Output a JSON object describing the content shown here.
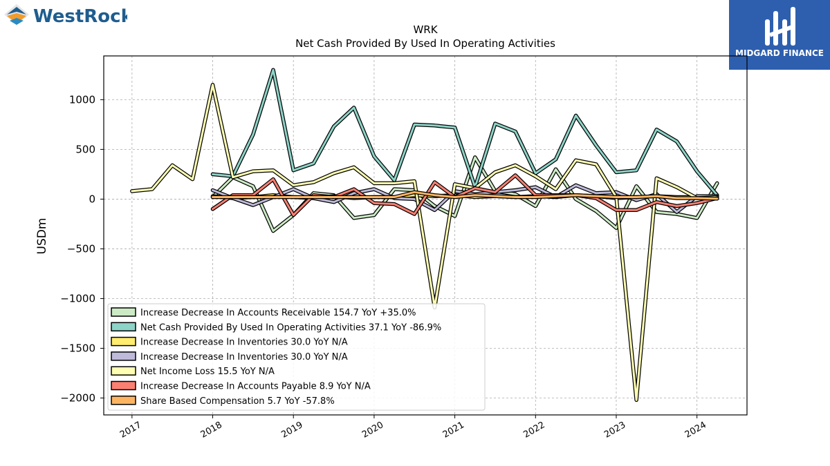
{
  "branding": {
    "left_logo_text": "WestRock",
    "right_logo_text": "MIDGARD FINANCE",
    "right_logo_bg": "#2e5fae"
  },
  "chart_data": {
    "type": "line",
    "title": "WRK",
    "subtitle": "Net Cash Provided By Used In Operating Activities",
    "xlabel": "",
    "ylabel": "USDm",
    "xlim": [
      2016.65,
      2024.62
    ],
    "ylim": [
      -2170,
      1440
    ],
    "x_ticks": [
      2017,
      2018,
      2019,
      2020,
      2021,
      2022,
      2023,
      2024
    ],
    "x_tick_labels": [
      "2017",
      "2018",
      "2019",
      "2020",
      "2021",
      "2022",
      "2023",
      "2024"
    ],
    "y_ticks": [
      1000,
      500,
      0,
      -500,
      -1000,
      -1500,
      -2000
    ],
    "y_tick_labels": [
      "1000",
      "500",
      "0",
      "−500",
      "−1000",
      "−1500",
      "−2000"
    ],
    "grid": true,
    "legend_position": "lower-left",
    "series": [
      {
        "name": "Increase Decrease In Accounts Receivable  154.7 YoY +35.0%",
        "color": "#ccebc5",
        "x": [
          2018.0,
          2018.25,
          2018.5,
          2018.75,
          2019.0,
          2019.25,
          2019.5,
          2019.75,
          2020.0,
          2020.25,
          2020.5,
          2020.75,
          2021.0,
          2021.25,
          2021.5,
          2021.75,
          2022.0,
          2022.25,
          2022.5,
          2022.75,
          2023.0,
          2023.25,
          2023.5,
          2023.75,
          2024.0,
          2024.25
        ],
        "y": [
          20,
          220,
          130,
          -320,
          -160,
          60,
          40,
          -190,
          -160,
          100,
          90,
          -70,
          -170,
          420,
          80,
          50,
          -70,
          300,
          0,
          -120,
          -290,
          130,
          -130,
          -150,
          -190,
          160
        ]
      },
      {
        "name": "Net Cash Provided By Used In Operating Activities  37.1 YoY -86.9%",
        "color": "#8dd3c7",
        "x": [
          2018.0,
          2018.25,
          2018.5,
          2018.75,
          2019.0,
          2019.25,
          2019.5,
          2019.75,
          2020.0,
          2020.25,
          2020.5,
          2020.75,
          2021.0,
          2021.25,
          2021.5,
          2021.75,
          2022.0,
          2022.25,
          2022.5,
          2022.75,
          2023.0,
          2023.25,
          2023.5,
          2023.75,
          2024.0,
          2024.25
        ],
        "y": [
          250,
          230,
          650,
          1300,
          290,
          360,
          730,
          920,
          430,
          190,
          750,
          740,
          720,
          120,
          760,
          680,
          260,
          400,
          840,
          540,
          270,
          290,
          700,
          580,
          280,
          40
        ]
      },
      {
        "name": "Increase Decrease In Inventories  30.0 YoY N/A",
        "color": "#ffed6f",
        "x": [
          2018.0,
          2018.25,
          2018.5,
          2018.75,
          2019.0,
          2019.25,
          2019.5,
          2019.75,
          2020.0,
          2020.25,
          2020.5,
          2020.75,
          2021.0,
          2021.25,
          2021.5,
          2021.75,
          2022.0,
          2022.25,
          2022.5,
          2022.75,
          2023.0,
          2023.25,
          2023.5,
          2023.75,
          2024.0,
          2024.25
        ],
        "y": [
          30,
          10,
          20,
          40,
          20,
          10,
          30,
          10,
          20,
          20,
          40,
          30,
          40,
          20,
          30,
          20,
          30,
          20,
          40,
          30,
          10,
          20,
          30,
          20,
          20,
          30
        ]
      },
      {
        "name": "Increase Decrease In Inventories  30.0 YoY N/A",
        "color": "#bebada",
        "x": [
          2018.0,
          2018.25,
          2018.5,
          2018.75,
          2019.0,
          2019.25,
          2019.5,
          2019.75,
          2020.0,
          2020.25,
          2020.5,
          2020.75,
          2021.0,
          2021.25,
          2021.5,
          2021.75,
          2022.0,
          2022.25,
          2022.5,
          2022.75,
          2023.0,
          2023.25,
          2023.5,
          2023.75,
          2024.0,
          2024.25
        ],
        "y": [
          90,
          10,
          -60,
          20,
          100,
          10,
          -30,
          60,
          100,
          10,
          0,
          -110,
          80,
          50,
          70,
          90,
          120,
          20,
          140,
          60,
          70,
          -10,
          50,
          -130,
          30,
          30
        ]
      },
      {
        "name": "Net Income Loss  15.5 YoY N/A",
        "color": "#ffffb3",
        "x": [
          2017.0,
          2017.25,
          2017.5,
          2017.75,
          2018.0,
          2018.25,
          2018.5,
          2018.75,
          2019.0,
          2019.25,
          2019.5,
          2019.75,
          2020.0,
          2020.25,
          2020.5,
          2020.75,
          2021.0,
          2021.25,
          2021.5,
          2021.75,
          2022.0,
          2022.25,
          2022.5,
          2022.75,
          2023.0,
          2023.25,
          2023.5,
          2023.75,
          2024.0,
          2024.25
        ],
        "y": [
          80,
          100,
          340,
          200,
          1150,
          220,
          280,
          290,
          140,
          170,
          260,
          320,
          160,
          160,
          180,
          -1090,
          150,
          110,
          270,
          340,
          230,
          100,
          390,
          350,
          20,
          -2020,
          210,
          120,
          10,
          20
        ]
      },
      {
        "name": "Increase Decrease In Accounts Payable  8.9 YoY N/A",
        "color": "#fb8072",
        "x": [
          2018.0,
          2018.25,
          2018.5,
          2018.75,
          2019.0,
          2019.25,
          2019.5,
          2019.75,
          2020.0,
          2020.25,
          2020.5,
          2020.75,
          2021.0,
          2021.25,
          2021.5,
          2021.75,
          2022.0,
          2022.25,
          2022.5,
          2022.75,
          2023.0,
          2023.25,
          2023.5,
          2023.75,
          2024.0,
          2024.25
        ],
        "y": [
          -100,
          40,
          40,
          200,
          -160,
          40,
          20,
          100,
          -40,
          -50,
          -150,
          170,
          20,
          110,
          70,
          240,
          40,
          40,
          40,
          10,
          -110,
          -110,
          -30,
          -70,
          -40,
          10
        ]
      },
      {
        "name": "Share Based Compensation  5.7 YoY -57.8%",
        "color": "#fdb462",
        "x": [
          2018.0,
          2018.25,
          2018.5,
          2018.75,
          2019.0,
          2019.25,
          2019.5,
          2019.75,
          2020.0,
          2020.25,
          2020.5,
          2020.75,
          2021.0,
          2021.25,
          2021.5,
          2021.75,
          2022.0,
          2022.25,
          2022.5,
          2022.75,
          2023.0,
          2023.25,
          2023.5,
          2023.75,
          2024.0,
          2024.25
        ],
        "y": [
          20,
          20,
          20,
          20,
          20,
          20,
          20,
          20,
          20,
          20,
          70,
          40,
          20,
          40,
          30,
          20,
          20,
          30,
          40,
          30,
          20,
          20,
          30,
          10,
          10,
          5
        ]
      }
    ]
  }
}
